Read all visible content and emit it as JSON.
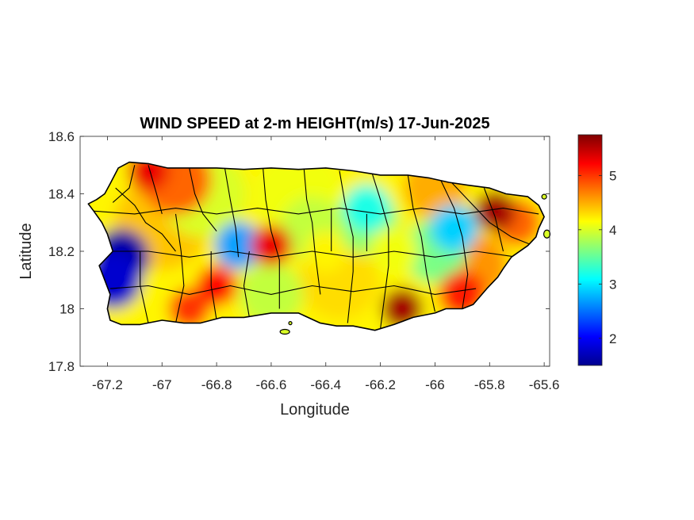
{
  "title": "WIND SPEED at 2-m HEIGHT(m/s) 17-Jun-2025",
  "xlabel": "Longitude",
  "ylabel": "Latitude",
  "colors": {
    "colormap": [
      "#00008f",
      "#0000ff",
      "#0080ff",
      "#00ffff",
      "#80ff80",
      "#ffff00",
      "#ff8000",
      "#ff0000",
      "#800000"
    ],
    "axis": "#262626",
    "boundaries": "#000000"
  },
  "chart_data": {
    "type": "heatmap",
    "title": "WIND SPEED at 2-m HEIGHT(m/s) 17-Jun-2025",
    "xlabel": "Longitude",
    "ylabel": "Latitude",
    "xlim": [
      -67.3,
      -65.58
    ],
    "ylim": [
      17.8,
      18.6
    ],
    "x_ticks": [
      -67.2,
      -67,
      -66.8,
      -66.6,
      -66.4,
      -66.2,
      -66,
      -65.8,
      -65.6
    ],
    "x_tick_labels": [
      "-67.2",
      "-67",
      "-66.8",
      "-66.6",
      "-66.4",
      "-66.2",
      "-66",
      "-65.8",
      "-65.6"
    ],
    "y_ticks": [
      17.8,
      18,
      18.2,
      18.4,
      18.6
    ],
    "y_tick_labels": [
      "17.8",
      "18",
      "18.2",
      "18.4",
      "18.6"
    ],
    "colorbar": {
      "range": [
        1.5,
        5.75
      ],
      "ticks": [
        2,
        3,
        4,
        5
      ],
      "tick_labels": [
        "2",
        "3",
        "4",
        "5"
      ],
      "colormap": "jet"
    },
    "grid": false,
    "field_features": [
      {
        "lon": -67.15,
        "lat": 18.18,
        "value": 1.6
      },
      {
        "lon": -67.18,
        "lat": 18.1,
        "value": 1.8
      },
      {
        "lon": -66.72,
        "lat": 18.22,
        "value": 2.7
      },
      {
        "lon": -65.93,
        "lat": 18.28,
        "value": 2.9
      },
      {
        "lon": -66.25,
        "lat": 18.35,
        "value": 3.2
      },
      {
        "lon": -67.05,
        "lat": 18.48,
        "value": 5.3
      },
      {
        "lon": -66.12,
        "lat": 18.0,
        "value": 5.6
      },
      {
        "lon": -65.78,
        "lat": 18.34,
        "value": 5.6
      },
      {
        "lon": -66.6,
        "lat": 18.22,
        "value": 5.3
      },
      {
        "lon": -66.8,
        "lat": 18.08,
        "value": 5.2
      },
      {
        "lon": -66.9,
        "lat": 18.0,
        "value": 5.0
      },
      {
        "lon": -66.4,
        "lat": 18.2,
        "value": 4.2
      }
    ]
  }
}
